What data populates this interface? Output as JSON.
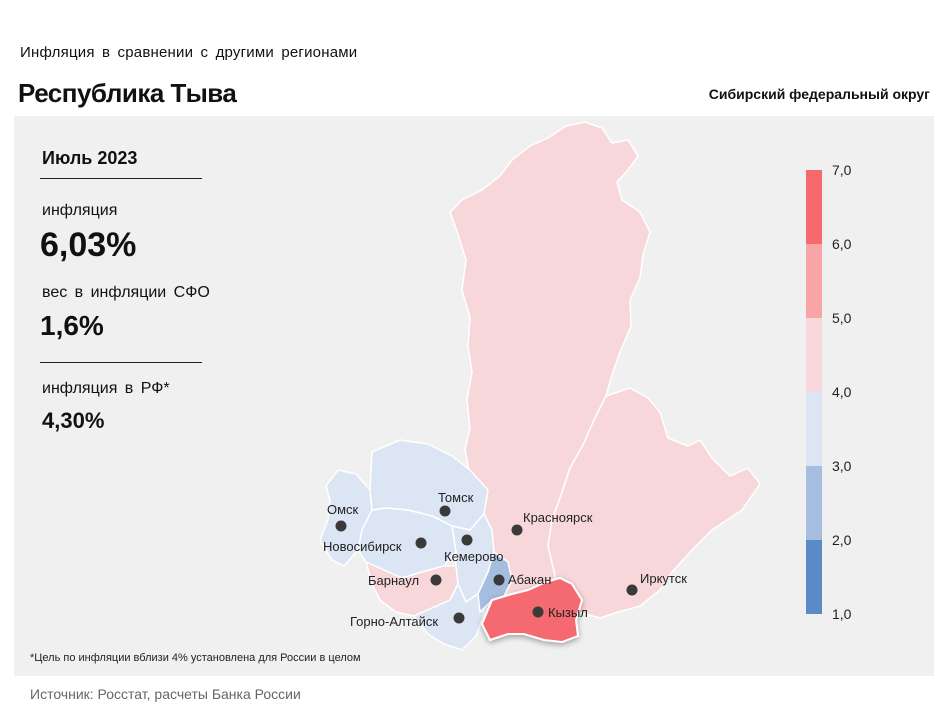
{
  "header": {
    "subtitle": "Инфляция  в сравнении  с другими  регионами",
    "title": "Республика Тыва",
    "district": "Сибирский федеральный округ"
  },
  "stats": {
    "period": "Июль 2023",
    "inflation_label": "инфляция",
    "inflation_value": "6,03%",
    "weight_label": "вес в инфляции  СФО",
    "weight_value": "1,6%",
    "rf_label": "инфляция  в РФ*",
    "rf_value": "4,30%"
  },
  "legend": {
    "ticks": [
      "7,0",
      "6,0",
      "5,0",
      "4,0",
      "3,0",
      "2,0",
      "1,0"
    ],
    "bins": [
      {
        "from": 6.0,
        "to": 7.0,
        "color": "#f46a6f"
      },
      {
        "from": 5.0,
        "to": 6.0,
        "color": "#f9a4a6"
      },
      {
        "from": 4.0,
        "to": 5.0,
        "color": "#f8d7db"
      },
      {
        "from": 3.0,
        "to": 4.0,
        "color": "#dce5f4"
      },
      {
        "from": 2.0,
        "to": 3.0,
        "color": "#a5bedf"
      },
      {
        "from": 1.0,
        "to": 2.0,
        "color": "#5a8bc6"
      }
    ]
  },
  "regions": [
    {
      "name": "Красноярский край",
      "color": "#f8d7db"
    },
    {
      "name": "Иркутская область",
      "color": "#f8d7db"
    },
    {
      "name": "Республика Тыва",
      "color": "#f46a6f"
    },
    {
      "name": "Республика Хакасия",
      "color": "#a5bedf"
    },
    {
      "name": "Омская область",
      "color": "#dce5f4"
    },
    {
      "name": "Томская область",
      "color": "#dce5f4"
    },
    {
      "name": "Новосибирская область",
      "color": "#dce5f4"
    },
    {
      "name": "Кемеровская область",
      "color": "#dce5f4"
    },
    {
      "name": "Алтайский край",
      "color": "#f8d7db"
    },
    {
      "name": "Республика Алтай",
      "color": "#dce5f4"
    }
  ],
  "cities": {
    "omsk": "Омск",
    "tomsk": "Томск",
    "novosibirsk": "Новосибирск",
    "kemerovo": "Кемерово",
    "krasnoyarsk": "Красноярск",
    "barnaul": "Барнаул",
    "abakan": "Абакан",
    "kyzyl": "Кызыл",
    "irkutsk": "Иркутск",
    "gorno_altaysk": "Горно-Алтайск"
  },
  "note": "*Цель по инфляции вблизи 4% установлена для России в целом",
  "source": "Источник: Росстат, расчеты Банка России"
}
